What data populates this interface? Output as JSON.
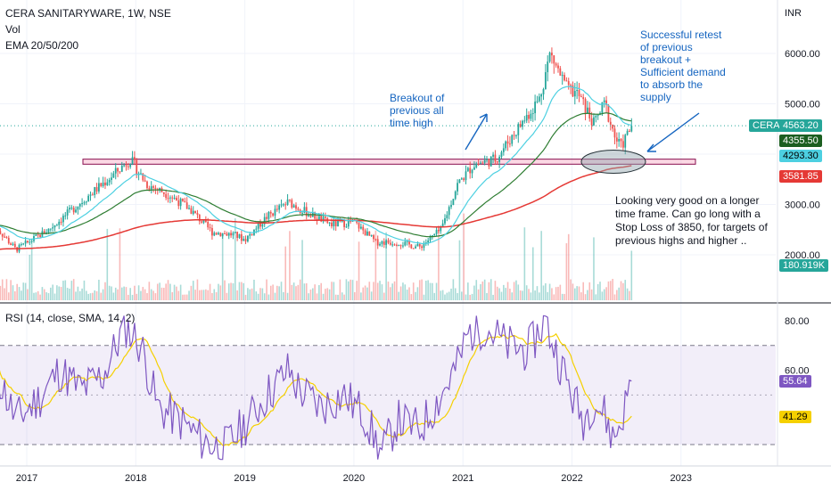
{
  "header": {
    "symbol_line": "CERA SANITARYWARE, 1W, NSE",
    "vol_label": "Vol",
    "ema_label": "EMA 20/50/200",
    "rsi_label": "RSI (14, close, SMA, 14, 2)"
  },
  "price_axis": {
    "currency": "INR",
    "ticks": [
      "6000.00",
      "5000.00",
      "4000.00",
      "3000.00",
      "2000.00"
    ],
    "tick_values": [
      6000,
      5000,
      4000,
      3000,
      2000
    ]
  },
  "rsi_axis": {
    "ticks": [
      "80.00",
      "60.00"
    ],
    "tick_values": [
      80,
      60
    ],
    "band": [
      30,
      70
    ]
  },
  "badges": {
    "symbol": "CERA",
    "price": "4563.20",
    "ema20": "4355.50",
    "ema50": "4293.30",
    "ema200": "3581.85",
    "volume": "180.919K",
    "rsi": "55.64",
    "rsi_sma": "41.29"
  },
  "time_axis": {
    "labels": [
      "2017",
      "2018",
      "2019",
      "2020",
      "2021",
      "2022",
      "2023"
    ]
  },
  "annotations": {
    "breakout": "Breakout of\nprevious all\ntime high",
    "retest": "Successful retest\nof previous\nbreakout +\nSufficient demand\nto absorb the\nsupply",
    "outlook": "Looking very good on a longer\ntime frame. Can go long with a\nStop Loss of 3850, for targets of\nprevious highs and higher .."
  },
  "colors": {
    "up": "#26a69a",
    "down": "#ef5350",
    "ema20": "#4dd0e1",
    "ema50": "#2e7d32",
    "ema200": "#e53935",
    "rsi": "#7e57c2",
    "rsi_sma": "#f5d000",
    "annotation": "#1565c0",
    "zone": "#f48fb1"
  },
  "chart_data": [
    {
      "type": "candlestick",
      "interval": "1W",
      "x_labels": [
        "2017",
        "2018",
        "2019",
        "2020",
        "2021",
        "2022",
        "2023"
      ],
      "ylim": [
        1400,
        6600
      ],
      "breakout_level": [
        3800,
        3900
      ],
      "series": [
        {
          "name": "price",
          "anchors": [
            [
              2016.7,
              2600
            ],
            [
              2016.9,
              2100
            ],
            [
              2017.2,
              2500
            ],
            [
              2017.5,
              3050
            ],
            [
              2017.8,
              3600
            ],
            [
              2017.95,
              3900
            ],
            [
              2018.1,
              3400
            ],
            [
              2018.3,
              3200
            ],
            [
              2018.5,
              2900
            ],
            [
              2018.7,
              2450
            ],
            [
              2018.9,
              2400
            ],
            [
              2019.0,
              2300
            ],
            [
              2019.2,
              2750
            ],
            [
              2019.4,
              3050
            ],
            [
              2019.6,
              2800
            ],
            [
              2019.8,
              2600
            ],
            [
              2020.0,
              2650
            ],
            [
              2020.2,
              2250
            ],
            [
              2020.4,
              2250
            ],
            [
              2020.6,
              2150
            ],
            [
              2020.8,
              2500
            ],
            [
              2020.95,
              3400
            ],
            [
              2021.1,
              3800
            ],
            [
              2021.3,
              3900
            ],
            [
              2021.5,
              4500
            ],
            [
              2021.7,
              5100
            ],
            [
              2021.8,
              6000
            ],
            [
              2021.95,
              5300
            ],
            [
              2022.05,
              5200
            ],
            [
              2022.2,
              4600
            ],
            [
              2022.3,
              5000
            ],
            [
              2022.4,
              4300
            ],
            [
              2022.45,
              4150
            ],
            [
              2022.55,
              4563.2
            ]
          ]
        },
        {
          "name": "EMA 20",
          "last": 4355.5
        },
        {
          "name": "EMA 50",
          "last": 4293.3
        },
        {
          "name": "EMA 200",
          "last": 3581.85
        },
        {
          "name": "Vol",
          "last": 180919
        }
      ]
    },
    {
      "type": "line",
      "name": "RSI (14, close, SMA, 14, 2)",
      "ylim": [
        20,
        85
      ],
      "band": [
        30,
        70
      ],
      "series": [
        {
          "name": "RSI",
          "anchors": [
            [
              2016.7,
              62
            ],
            [
              2016.9,
              40
            ],
            [
              2017.1,
              48
            ],
            [
              2017.3,
              60
            ],
            [
              2017.5,
              52
            ],
            [
              2017.7,
              58
            ],
            [
              2017.9,
              78
            ],
            [
              2018.05,
              70
            ],
            [
              2018.2,
              45
            ],
            [
              2018.4,
              40
            ],
            [
              2018.6,
              32
            ],
            [
              2018.8,
              28
            ],
            [
              2019.0,
              38
            ],
            [
              2019.2,
              50
            ],
            [
              2019.4,
              60
            ],
            [
              2019.5,
              52
            ],
            [
              2019.7,
              45
            ],
            [
              2019.9,
              50
            ],
            [
              2020.1,
              42
            ],
            [
              2020.25,
              26
            ],
            [
              2020.4,
              40
            ],
            [
              2020.6,
              36
            ],
            [
              2020.8,
              50
            ],
            [
              2020.95,
              62
            ],
            [
              2021.05,
              75
            ],
            [
              2021.2,
              78
            ],
            [
              2021.4,
              70
            ],
            [
              2021.6,
              68
            ],
            [
              2021.75,
              80
            ],
            [
              2021.9,
              62
            ],
            [
              2022.0,
              50
            ],
            [
              2022.1,
              40
            ],
            [
              2022.2,
              48
            ],
            [
              2022.3,
              42
            ],
            [
              2022.38,
              32
            ],
            [
              2022.45,
              40
            ],
            [
              2022.55,
              55.64
            ]
          ],
          "last": 55.64
        },
        {
          "name": "RSI SMA",
          "last": 41.29
        }
      ]
    }
  ]
}
